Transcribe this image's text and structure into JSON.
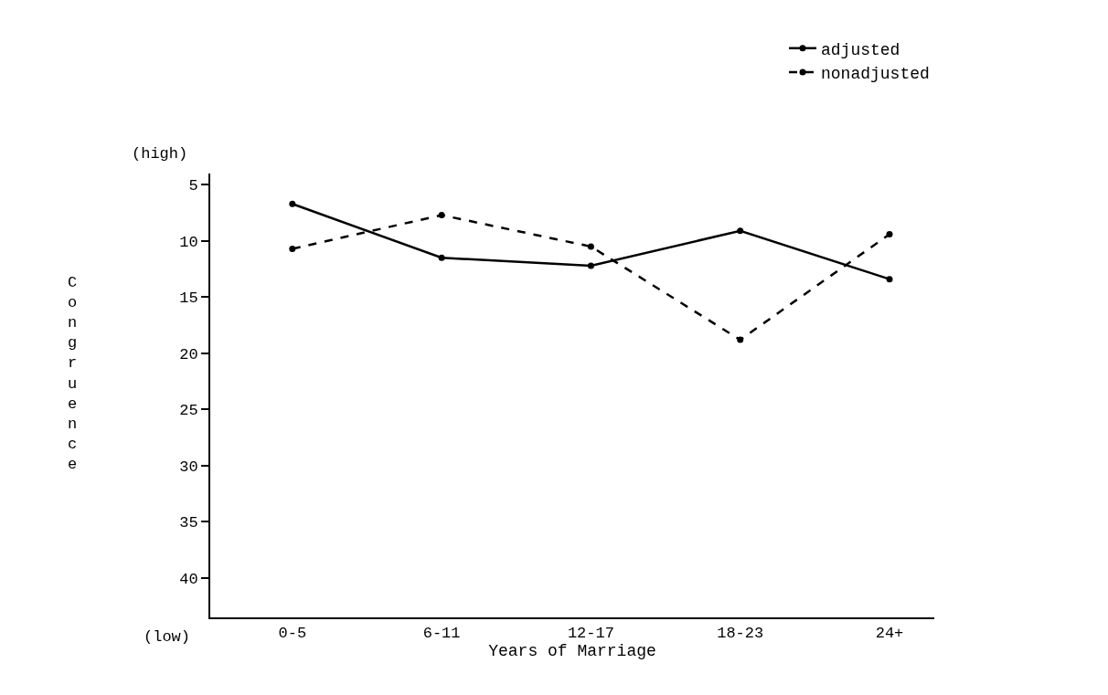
{
  "chart_data": {
    "type": "line",
    "xlabel": "Years of Marriage",
    "ylabel": "Congruence",
    "categories": [
      "0-5",
      "6-11",
      "12-17",
      "18-23",
      "24+"
    ],
    "series": [
      {
        "name": "adjusted",
        "color": "#000000",
        "line_style": "solid",
        "values": [
          6.7,
          11.5,
          12.2,
          9.1,
          13.4
        ]
      },
      {
        "name": "nonadjusted",
        "color": "#000000",
        "line_style": "dashed",
        "values": [
          10.7,
          7.7,
          10.5,
          18.8,
          9.4
        ]
      }
    ],
    "ylim": [
      43.5,
      4
    ],
    "yticks": [
      5,
      10,
      15,
      20,
      25,
      30,
      35,
      40
    ],
    "marker": "circle",
    "legend": "top right",
    "annotations": [
      "(high)",
      "(low)"
    ]
  }
}
